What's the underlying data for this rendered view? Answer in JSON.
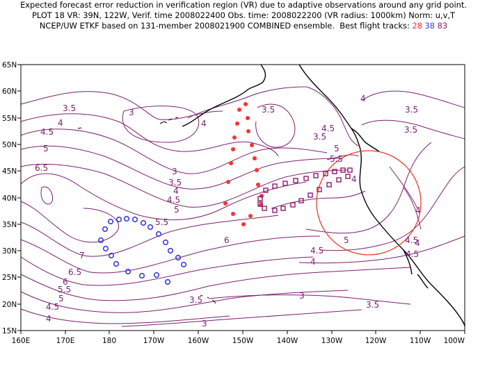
{
  "title": {
    "line1": "Expected forecast error reduction in verification region (VR) due to adaptive observations around any grid point.",
    "line2": "PLOT 18 VR: 39N, 122W, Verif. time 2008022400 Obs. time: 2008022200 (VR radius: 1000km) Norm: u,v,T",
    "line3_prefix": "NCEP/UW ETKF based on 131-member 2008021900 COMBINED ensemble.  Best flight tracks: ",
    "track_a": "28",
    "track_b": "38",
    "track_c": "83"
  },
  "axes": {
    "lat_labels": [
      "65N",
      "60N",
      "55N",
      "50N",
      "45N",
      "40N",
      "35N",
      "30N",
      "25N",
      "20N",
      "15N"
    ],
    "lon_labels": [
      "160E",
      "170E",
      "180",
      "170W",
      "160W",
      "150W",
      "140W",
      "130W",
      "120W",
      "110W",
      "100W"
    ]
  },
  "contour_labels": [
    {
      "id": "c1",
      "text": "3.5"
    },
    {
      "id": "c2",
      "text": "3"
    },
    {
      "id": "c3",
      "text": "4"
    },
    {
      "id": "c4",
      "text": "4.5"
    },
    {
      "id": "c5",
      "text": "5"
    },
    {
      "id": "c6",
      "text": "6.5"
    },
    {
      "id": "c7",
      "text": "3.5"
    },
    {
      "id": "c8",
      "text": "4"
    },
    {
      "id": "c9",
      "text": "4"
    },
    {
      "id": "c10",
      "text": "3"
    },
    {
      "id": "c11",
      "text": "3.5"
    },
    {
      "id": "c12",
      "text": "4"
    },
    {
      "id": "c13",
      "text": "4.5"
    },
    {
      "id": "c14",
      "text": "5"
    },
    {
      "id": "c15",
      "text": "5.5"
    },
    {
      "id": "c16",
      "text": "6"
    },
    {
      "id": "c17",
      "text": "7"
    },
    {
      "id": "c18",
      "text": "6.5"
    },
    {
      "id": "c19",
      "text": "6"
    },
    {
      "id": "c20",
      "text": "5.5"
    },
    {
      "id": "c21",
      "text": "5"
    },
    {
      "id": "c22",
      "text": "4.5"
    },
    {
      "id": "c23",
      "text": "4"
    },
    {
      "id": "c24",
      "text": "3.5"
    },
    {
      "id": "c25",
      "text": "3"
    },
    {
      "id": "c26",
      "text": "3.5"
    },
    {
      "id": "c27",
      "text": "4.5"
    },
    {
      "id": "c28",
      "text": "5"
    },
    {
      "id": "c29",
      "text": "5.5"
    },
    {
      "id": "c30",
      "text": "4"
    },
    {
      "id": "c31",
      "text": "3.5"
    },
    {
      "id": "c32",
      "text": "4"
    },
    {
      "id": "c33",
      "text": "5"
    },
    {
      "id": "c34",
      "text": "4.5"
    },
    {
      "id": "c35",
      "text": "4.5"
    },
    {
      "id": "c36",
      "text": "4"
    },
    {
      "id": "c37",
      "text": "3"
    },
    {
      "id": "c38",
      "text": "3.5"
    },
    {
      "id": "c39",
      "text": "4"
    },
    {
      "id": "c40",
      "text": "4.5"
    },
    {
      "id": "c41",
      "text": "3.5"
    }
  ],
  "colors": {
    "contour": "#7a1f6e",
    "coast": "#000000",
    "track_28": "#ff3030",
    "track_38": "#3a3ae0",
    "track_83": "#8b1a6b",
    "vr_circle": "#ee3b2b"
  },
  "verification_region": {
    "center_lat": 39,
    "center_lon": -122,
    "radius_km": 1000
  }
}
